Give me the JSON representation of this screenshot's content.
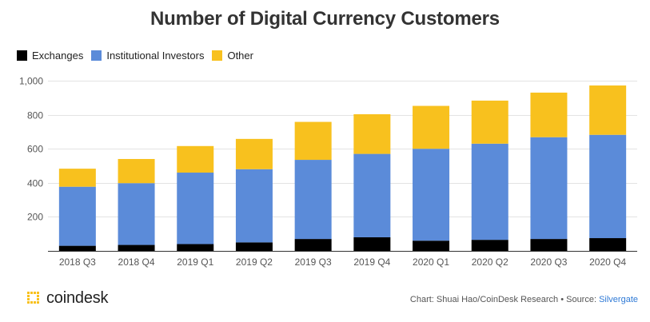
{
  "chart_data": {
    "type": "bar",
    "stacked": true,
    "title": "Number of Digital Currency Customers",
    "categories": [
      "2018 Q3",
      "2018 Q4",
      "2019 Q1",
      "2019 Q2",
      "2019 Q3",
      "2019 Q4",
      "2020 Q1",
      "2020 Q2",
      "2020 Q3",
      "2020 Q4"
    ],
    "series": [
      {
        "name": "Exchanges",
        "color": "#000000",
        "values": [
          30,
          35,
          40,
          50,
          70,
          80,
          60,
          65,
          70,
          75
        ]
      },
      {
        "name": "Institutional Investors",
        "color": "#5b8bd9",
        "values": [
          347,
          363,
          420,
          430,
          465,
          490,
          540,
          565,
          598,
          607
        ]
      },
      {
        "name": "Other",
        "color": "#f8c11e",
        "values": [
          106,
          142,
          156,
          178,
          223,
          233,
          252,
          253,
          262,
          290
        ]
      }
    ],
    "ylim": [
      0,
      1000
    ],
    "yticks": [
      200,
      400,
      600,
      800,
      1000
    ],
    "ytick_labels": [
      "200",
      "400",
      "600",
      "800",
      "1,000"
    ],
    "xlabel": "",
    "ylabel": "",
    "grid": true,
    "legend_position": "top-left"
  },
  "footer": {
    "logo_text": "coindesk",
    "credit_prefix": "Chart: Shuai Hao/CoinDesk Research • Source: ",
    "credit_source": "Silvergate"
  }
}
